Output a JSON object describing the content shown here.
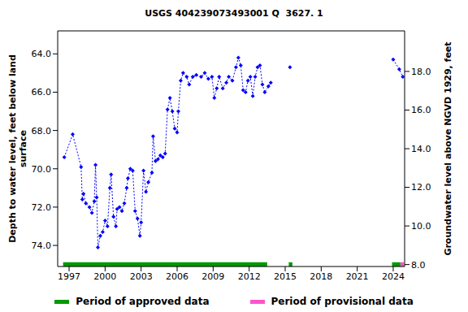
{
  "chart_data": {
    "type": "line",
    "title": "USGS 404239073493001 Q  3627. 1",
    "y_label": "Depth to water level, feet below land surface",
    "y2_label": "Groundwater level above NGVD 1929, feet",
    "xlim": [
      1996.05,
      2024.95
    ],
    "xticks": [
      1997,
      2000,
      2003,
      2006,
      2009,
      2012,
      2015,
      2018,
      2021,
      2024
    ],
    "ylim": [
      62.8,
      75.1
    ],
    "yticks": [
      {
        "value": 64,
        "label": "64.0"
      },
      {
        "value": 66,
        "label": "66.0"
      },
      {
        "value": 68,
        "label": "68.0"
      },
      {
        "value": 70,
        "label": "70.0"
      },
      {
        "value": 72,
        "label": "72.0"
      },
      {
        "value": 74,
        "label": "74.0"
      }
    ],
    "y2lim": [
      7.9,
      20.1
    ],
    "y2ticks": [
      {
        "value": 8,
        "label": "8.0"
      },
      {
        "value": 10,
        "label": "10.0"
      },
      {
        "value": 12,
        "label": "12.0"
      },
      {
        "value": 14,
        "label": "14.0"
      },
      {
        "value": 16,
        "label": "16.0"
      },
      {
        "value": 18,
        "label": "18.0"
      }
    ],
    "x": [
      1996.6,
      1997.3,
      1998.0,
      1998.1,
      1998.2,
      1998.4,
      1998.7,
      1998.9,
      1999.1,
      1999.2,
      1999.3,
      1999.4,
      1999.6,
      1999.8,
      2000.0,
      2000.2,
      2000.4,
      2000.5,
      2000.7,
      2000.9,
      2001.0,
      2001.2,
      2001.4,
      2001.6,
      2001.8,
      2001.9,
      2002.1,
      2002.3,
      2002.5,
      2002.7,
      2002.9,
      2003.0,
      2003.2,
      2003.4,
      2003.6,
      2003.9,
      2004.0,
      2004.2,
      2004.4,
      2004.6,
      2004.8,
      2005.0,
      2005.2,
      2005.4,
      2005.6,
      2005.8,
      2006.0,
      2006.1,
      2006.3,
      2006.5,
      2006.8,
      2007.0,
      2007.3,
      2007.6,
      2008.0,
      2008.3,
      2008.6,
      2008.9,
      2009.1,
      2009.3,
      2009.5,
      2009.8,
      2010.1,
      2010.3,
      2010.6,
      2010.9,
      2011.1,
      2011.3,
      2011.5,
      2011.7,
      2011.9,
      2012.1,
      2012.3,
      2012.5,
      2012.7,
      2012.9,
      2013.1,
      2013.3,
      2013.6,
      2013.8,
      2014.5,
      2015.4,
      2020.0,
      2024.0,
      2024.5,
      2024.8
    ],
    "series": [
      {
        "name": "Depth to water level",
        "color": "#0000ff",
        "marker": "diamond",
        "line_style": "dotted",
        "values": [
          69.4,
          68.2,
          69.9,
          71.6,
          71.3,
          71.8,
          72.0,
          72.3,
          71.7,
          69.8,
          71.5,
          74.1,
          73.5,
          73.3,
          72.7,
          73.0,
          71.0,
          70.3,
          72.5,
          73.0,
          72.1,
          72.0,
          72.2,
          71.8,
          71.0,
          70.5,
          70.0,
          70.1,
          72.2,
          72.6,
          73.5,
          72.8,
          70.1,
          71.2,
          70.7,
          70.2,
          68.3,
          69.6,
          69.5,
          69.3,
          69.4,
          69.2,
          66.9,
          66.3,
          67.0,
          67.9,
          68.1,
          67.0,
          65.4,
          65.0,
          65.2,
          65.6,
          65.2,
          65.1,
          65.2,
          65.0,
          65.3,
          65.2,
          66.3,
          65.8,
          65.2,
          65.8,
          65.5,
          65.2,
          65.4,
          64.7,
          64.2,
          64.6,
          65.9,
          66.0,
          65.4,
          65.2,
          66.2,
          65.2,
          64.7,
          64.6,
          65.6,
          66.0,
          65.7,
          65.5,
          null,
          64.7,
          null,
          64.3,
          64.8,
          65.2
        ]
      }
    ],
    "periods": [
      {
        "name": "Period of approved data",
        "color": "#009900",
        "ranges": [
          [
            1996.5,
            2013.5
          ],
          [
            2015.3,
            2015.6
          ],
          [
            2023.9,
            2024.6
          ]
        ]
      },
      {
        "name": "Period of provisional data",
        "color": "#ff55cc",
        "ranges": [
          [
            2024.6,
            2024.9
          ]
        ]
      }
    ]
  }
}
